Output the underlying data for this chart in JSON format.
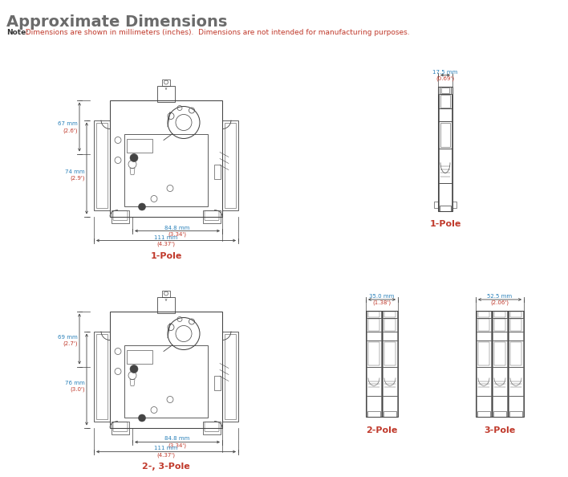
{
  "title": "Approximate Dimensions",
  "title_color": "#6b6b6b",
  "title_fontsize": 14,
  "note_bold": "Note:",
  "note_text": "  Dimensions are shown in millimeters (inches).  Dimensions are not intended for manufacturing purposes.",
  "note_bold_color": "#333333",
  "note_text_color": "#c0392b",
  "note_fontsize": 6.5,
  "bg_color": "#ffffff",
  "dim_color_mm": "#2980b9",
  "dim_color_in": "#c0392b",
  "line_color": "#444444",
  "label_color": "#c0392b",
  "label_1pole_front": "1-Pole",
  "label_1pole_side": "1-Pole",
  "label_23pole_front": "2-, 3-Pole",
  "label_2pole_side": "2-Pole",
  "label_3pole_side": "3-Pole"
}
